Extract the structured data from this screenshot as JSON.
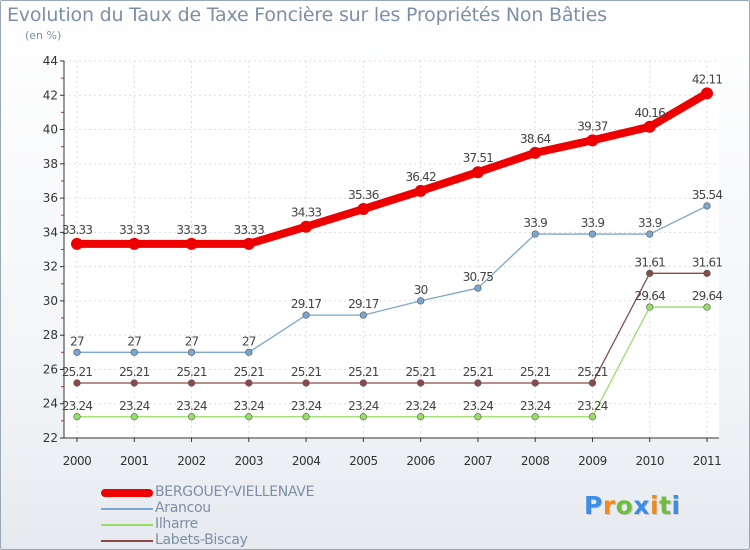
{
  "header": {
    "title": "Evolution du Taux de Taxe Foncière sur les Propriétés Non Bâties",
    "subtitle": "(en %)"
  },
  "chart_data": {
    "type": "line",
    "title": "Evolution du Taux de Taxe Foncière sur les Propriétés Non Bâties",
    "ylabel": "(en %)",
    "xlabel": "",
    "ylim": [
      22,
      44
    ],
    "yticks": [
      22,
      24,
      26,
      28,
      30,
      32,
      34,
      36,
      38,
      40,
      42,
      44
    ],
    "categories": [
      "2000",
      "2001",
      "2002",
      "2003",
      "2004",
      "2005",
      "2006",
      "2007",
      "2008",
      "2009",
      "2010",
      "2011"
    ],
    "series": [
      {
        "name": "BERGOUEY-VIELLENAVE",
        "color": "#ee0000",
        "values": [
          33.33,
          33.33,
          33.33,
          33.33,
          34.33,
          35.36,
          36.42,
          37.51,
          38.64,
          39.37,
          40.16,
          42.11
        ],
        "labels": [
          "33.33",
          "33.33",
          "33.33",
          "33.33",
          "34.33",
          "35.36",
          "36.42",
          "37.51",
          "38.64",
          "39.37",
          "40.16",
          "42.11"
        ]
      },
      {
        "name": "Arancou",
        "color": "#7aa6cf",
        "values": [
          27,
          27,
          27,
          27,
          29.17,
          29.17,
          30,
          30.75,
          33.9,
          33.9,
          33.9,
          35.54
        ],
        "labels": [
          "27",
          "27",
          "27",
          "27",
          "29.17",
          "29.17",
          "30",
          "30.75",
          "33.9",
          "33.9",
          "33.9",
          "35.54"
        ]
      },
      {
        "name": "Ilharre",
        "color": "#99dd66",
        "values": [
          23.24,
          23.24,
          23.24,
          23.24,
          23.24,
          23.24,
          23.24,
          23.24,
          23.24,
          23.24,
          29.64,
          29.64
        ],
        "labels": [
          "23.24",
          "23.24",
          "23.24",
          "23.24",
          "23.24",
          "23.24",
          "23.24",
          "23.24",
          "23.24",
          "23.24",
          "29.64",
          "29.64"
        ]
      },
      {
        "name": "Labets-Biscay",
        "color": "#8a4a4a",
        "values": [
          25.21,
          25.21,
          25.21,
          25.21,
          25.21,
          25.21,
          25.21,
          25.21,
          25.21,
          25.21,
          31.61,
          31.61
        ],
        "labels": [
          "25.21",
          "25.21",
          "25.21",
          "25.21",
          "25.21",
          "25.21",
          "25.21",
          "25.21",
          "25.21",
          "25.21",
          "31.61",
          "31.61"
        ]
      }
    ],
    "grid": true,
    "legend": "bottom-left"
  },
  "legend": {
    "items": [
      {
        "label": "BERGOUEY-VIELLENAVE",
        "color": "#ee0000"
      },
      {
        "label": "Arancou",
        "color": "#7aa6cf"
      },
      {
        "label": "Ilharre",
        "color": "#99dd66"
      },
      {
        "label": "Labets-Biscay",
        "color": "#8a4a4a"
      }
    ]
  },
  "logo": {
    "letters": [
      "P",
      "r",
      "o",
      "x",
      "i",
      "t",
      "i"
    ],
    "colors": [
      "#3a8ee6",
      "#f08a1c",
      "#6cbe3c",
      "#3a8ee6",
      "#f08a1c",
      "#6cbe3c",
      "#3a8ee6"
    ]
  }
}
